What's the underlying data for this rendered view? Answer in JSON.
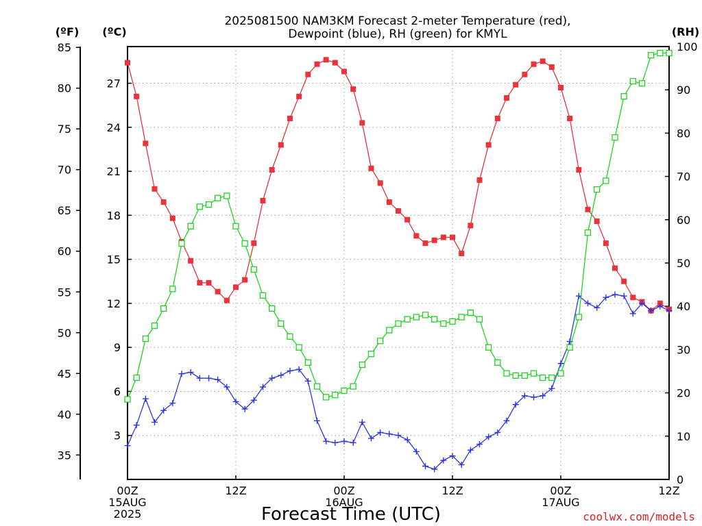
{
  "chart_data": {
    "type": "line",
    "title_line1": "2025081500 NAM3KM Forecast 2-meter Temperature (red),",
    "title_line2": "Dewpoint (blue), RH (green) for KMYL",
    "xlabel": "Forecast Time (UTC)",
    "credit": "coolwx.com/models",
    "units": {
      "fahrenheit": "(ºF)",
      "celsius": "(ºC)",
      "rh": "(RH)"
    },
    "x_ticks": [
      {
        "hour": 0,
        "lines": [
          "00Z",
          "15AUG",
          "2025"
        ]
      },
      {
        "hour": 12,
        "lines": [
          "12Z"
        ]
      },
      {
        "hour": 24,
        "lines": [
          "00Z",
          "16AUG"
        ]
      },
      {
        "hour": 36,
        "lines": [
          "12Z"
        ]
      },
      {
        "hour": 48,
        "lines": [
          "00Z",
          "17AUG"
        ]
      },
      {
        "hour": 60,
        "lines": [
          "12Z"
        ]
      }
    ],
    "xlim": [
      0,
      60
    ],
    "ylim_celsius": [
      0,
      29.5
    ],
    "ylim_rh": [
      0,
      100
    ],
    "celsius_ticks": [
      3,
      6,
      9,
      12,
      15,
      18,
      21,
      24,
      27
    ],
    "fahrenheit_ticks": [
      35,
      40,
      45,
      50,
      55,
      60,
      65,
      70,
      75,
      80,
      85
    ],
    "rh_ticks": [
      0,
      10,
      20,
      30,
      40,
      50,
      60,
      70,
      80,
      90,
      100
    ],
    "grid": "dotted",
    "series": [
      {
        "name": "Temperature",
        "color": "#e8343a",
        "marker": "filled-square",
        "axis": "celsius",
        "hours": [
          0,
          1,
          2,
          3,
          4,
          5,
          6,
          7,
          8,
          9,
          10,
          11,
          12,
          13,
          14,
          15,
          16,
          17,
          18,
          19,
          20,
          21,
          22,
          23,
          24,
          25,
          26,
          27,
          28,
          29,
          30,
          31,
          32,
          33,
          34,
          35,
          36,
          37,
          38,
          39,
          40,
          41,
          42,
          43,
          44,
          45,
          46,
          47,
          48,
          49,
          50,
          51,
          52,
          53,
          54,
          55,
          56,
          57,
          58,
          59,
          60
        ],
        "values": [
          28.4,
          26.1,
          22.9,
          19.8,
          18.9,
          17.8,
          16.2,
          14.9,
          13.4,
          13.4,
          12.8,
          12.2,
          13.1,
          13.6,
          16.1,
          19.0,
          21.1,
          22.8,
          24.6,
          26.1,
          27.6,
          28.3,
          28.6,
          28.4,
          27.8,
          26.6,
          24.3,
          21.2,
          20.2,
          18.9,
          18.3,
          17.7,
          16.6,
          16.1,
          16.3,
          16.5,
          16.5,
          15.4,
          17.3,
          20.4,
          22.8,
          24.6,
          26.0,
          26.9,
          27.6,
          28.3,
          28.5,
          28.1,
          26.7,
          24.6,
          21.1,
          18.4,
          17.6,
          16.1,
          14.4,
          13.5,
          12.4,
          12.1,
          11.5,
          12.0,
          11.6
        ]
      },
      {
        "name": "Dewpoint",
        "color": "#2b35e6",
        "marker": "plus",
        "axis": "celsius",
        "hours": [
          0,
          1,
          2,
          3,
          4,
          5,
          6,
          7,
          8,
          9,
          10,
          11,
          12,
          13,
          14,
          15,
          16,
          17,
          18,
          19,
          20,
          21,
          22,
          23,
          24,
          25,
          26,
          27,
          28,
          29,
          30,
          31,
          32,
          33,
          34,
          35,
          36,
          37,
          38,
          39,
          40,
          41,
          42,
          43,
          44,
          45,
          46,
          47,
          48,
          49,
          50,
          51,
          52,
          53,
          54,
          55,
          56,
          57,
          58,
          59,
          60
        ],
        "values": [
          2.3,
          3.7,
          5.5,
          3.9,
          4.7,
          5.2,
          7.2,
          7.3,
          6.9,
          6.9,
          6.8,
          6.3,
          5.3,
          4.8,
          5.4,
          6.3,
          6.9,
          7.1,
          7.4,
          7.5,
          6.7,
          4.0,
          2.6,
          2.5,
          2.6,
          2.5,
          3.9,
          2.8,
          3.2,
          3.1,
          3.0,
          2.7,
          1.9,
          0.9,
          0.7,
          1.3,
          1.6,
          1.0,
          2.0,
          2.4,
          2.9,
          3.2,
          4.0,
          5.1,
          5.7,
          5.6,
          5.7,
          6.2,
          7.9,
          9.4,
          12.5,
          12.0,
          11.7,
          12.4,
          12.6,
          12.5,
          11.3,
          12.0,
          11.5,
          11.8,
          11.5
        ]
      },
      {
        "name": "RH",
        "color": "#1ed41e",
        "marker": "open-square",
        "axis": "rh",
        "hours": [
          0,
          1,
          2,
          3,
          4,
          5,
          6,
          7,
          8,
          9,
          10,
          11,
          12,
          13,
          14,
          15,
          16,
          17,
          18,
          19,
          20,
          21,
          22,
          23,
          24,
          25,
          26,
          27,
          28,
          29,
          30,
          31,
          32,
          33,
          34,
          35,
          36,
          37,
          38,
          39,
          40,
          41,
          42,
          43,
          44,
          45,
          46,
          47,
          48,
          49,
          50,
          51,
          52,
          53,
          54,
          55,
          56,
          57,
          58,
          59,
          60
        ],
        "values": [
          18.5,
          23.5,
          32.5,
          35.5,
          39.5,
          44.0,
          54.5,
          58.5,
          63.0,
          63.5,
          65.0,
          65.5,
          58.5,
          54.5,
          48.5,
          42.5,
          39.5,
          36.0,
          33.0,
          30.5,
          27.0,
          21.5,
          19.0,
          19.5,
          20.5,
          21.5,
          26.5,
          29.0,
          32.0,
          34.5,
          36.0,
          37.0,
          37.5,
          38.0,
          37.0,
          36.0,
          36.5,
          37.5,
          38.5,
          37.0,
          30.5,
          27.0,
          24.5,
          24.0,
          24.0,
          24.5,
          23.5,
          23.5,
          24.5,
          30.5,
          37.5,
          57.0,
          67.0,
          69.0,
          79.0,
          88.5,
          92.0,
          91.5,
          98.0,
          98.5,
          98.5
        ]
      }
    ]
  }
}
